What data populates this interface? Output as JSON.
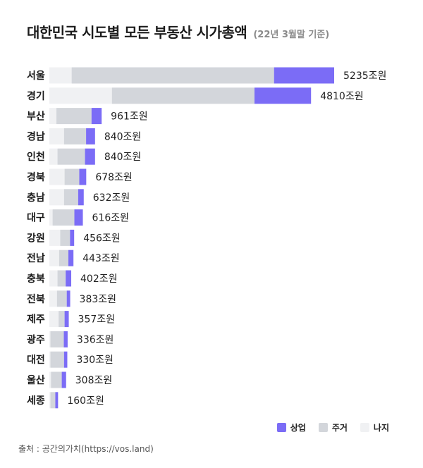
{
  "header": {
    "title": "대한민국 시도별 모든 부동산 시가총액",
    "subtitle": "(22년 3월말 기준)"
  },
  "legend": [
    {
      "name": "상업",
      "color": "#7b6cf6"
    },
    {
      "name": "주거",
      "color": "#d3d6db"
    },
    {
      "name": "나지",
      "color": "#f0f1f3"
    }
  ],
  "source": "출처 : 공간의가치(https://vos.land)",
  "chart_data": {
    "type": "bar",
    "orientation": "horizontal",
    "stacked": true,
    "value_unit": "조원",
    "categories": [
      "서울",
      "경기",
      "부산",
      "경남",
      "인천",
      "경북",
      "충남",
      "대구",
      "강원",
      "전남",
      "충북",
      "전북",
      "제주",
      "광주",
      "대전",
      "울산",
      "세종"
    ],
    "totals": [
      5235,
      4810,
      961,
      840,
      840,
      678,
      632,
      616,
      456,
      443,
      402,
      383,
      357,
      336,
      330,
      308,
      160
    ],
    "total_labels": [
      "5235조원",
      "4810조원",
      "961조원",
      "840조원",
      "840조원",
      "678조원",
      "632조원",
      "616조원",
      "456조원",
      "443조원",
      "402조원",
      "383조원",
      "357조원",
      "336조원",
      "330조원",
      "308조원",
      "160조원"
    ],
    "series": [
      {
        "name": "나지",
        "color": "#f0f1f3",
        "values": [
          410,
          1150,
          130,
          270,
          150,
          280,
          270,
          60,
          200,
          180,
          150,
          140,
          170,
          20,
          20,
          30,
          20
        ]
      },
      {
        "name": "주거",
        "color": "#d3d6db",
        "values": [
          3720,
          2620,
          645,
          405,
          505,
          270,
          260,
          400,
          180,
          170,
          150,
          180,
          110,
          246,
          250,
          198,
          90
        ]
      },
      {
        "name": "상업",
        "color": "#7b6cf6",
        "values": [
          1105,
          1040,
          186,
          165,
          185,
          128,
          102,
          156,
          76,
          93,
          102,
          63,
          77,
          70,
          60,
          80,
          50
        ]
      }
    ]
  }
}
